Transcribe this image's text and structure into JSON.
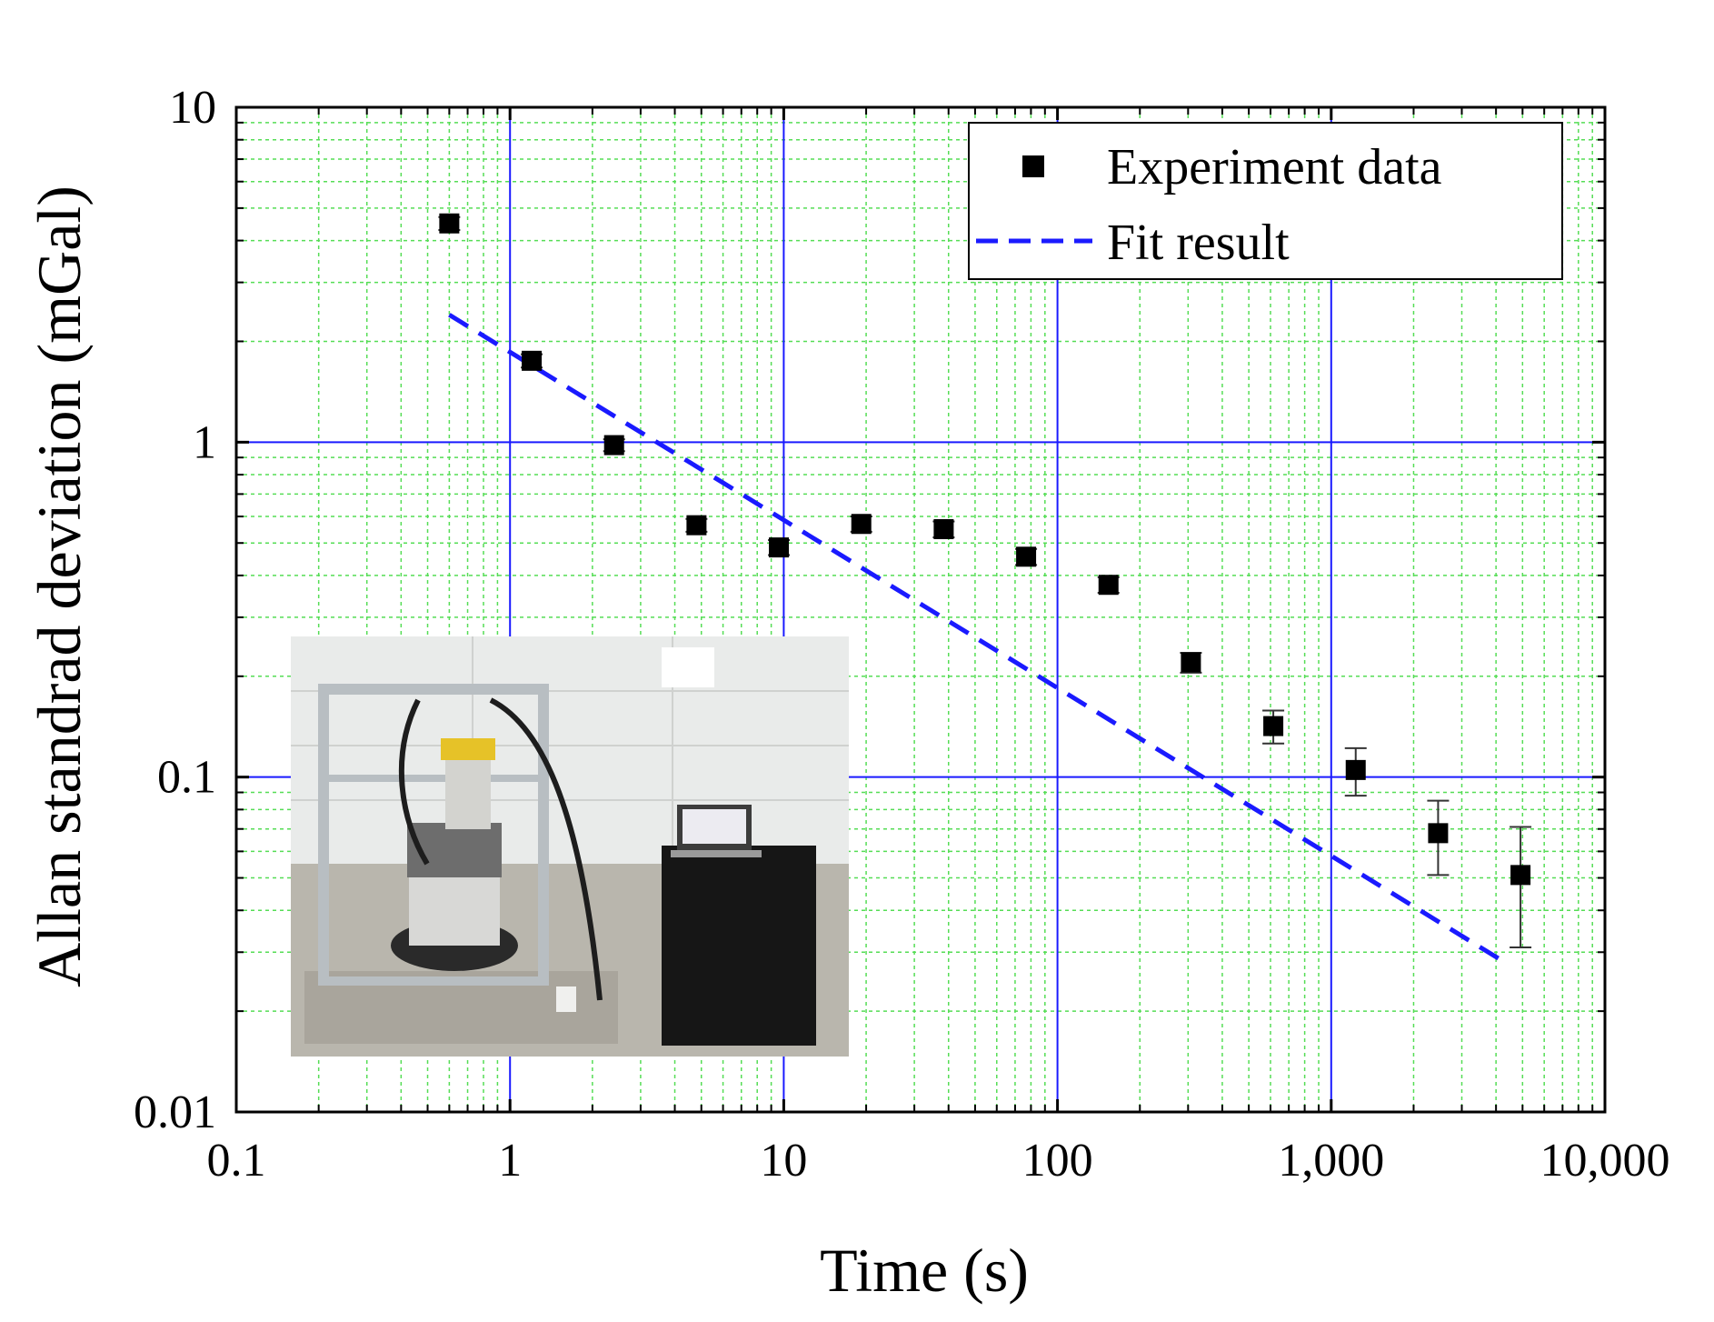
{
  "chart_data": {
    "type": "scatter",
    "title": "",
    "xlabel": "Time (s)",
    "ylabel": "Allan standrad deviation (mGal)",
    "xscale": "log",
    "yscale": "log",
    "xlim": [
      0.1,
      10000
    ],
    "ylim": [
      0.01,
      10
    ],
    "x_ticks": [
      {
        "value": 0.1,
        "label": "0.1"
      },
      {
        "value": 1,
        "label": "1"
      },
      {
        "value": 10,
        "label": "10"
      },
      {
        "value": 100,
        "label": "100"
      },
      {
        "value": 1000,
        "label": "1,000"
      },
      {
        "value": 10000,
        "label": "10,000"
      }
    ],
    "y_ticks": [
      {
        "value": 0.01,
        "label": "0.01"
      },
      {
        "value": 0.1,
        "label": "0.1"
      },
      {
        "value": 1,
        "label": "1"
      },
      {
        "value": 10,
        "label": "10"
      }
    ],
    "grid": {
      "major": true,
      "minor": true,
      "major_color": "#1a1aff",
      "minor_color": "#55dd55"
    },
    "legend": {
      "placement": "top-right"
    },
    "series": [
      {
        "name": "Experiment data",
        "kind": "scatter",
        "marker": "square",
        "color": "#000000",
        "points": [
          {
            "x": 0.6,
            "y": 4.5,
            "err": 0.2
          },
          {
            "x": 1.2,
            "y": 1.75,
            "err": 0.08
          },
          {
            "x": 2.4,
            "y": 0.98,
            "err": 0.04
          },
          {
            "x": 4.8,
            "y": 0.565,
            "err": 0.025
          },
          {
            "x": 9.6,
            "y": 0.485,
            "err": 0.025
          },
          {
            "x": 19.2,
            "y": 0.57,
            "err": 0.03
          },
          {
            "x": 38.4,
            "y": 0.55,
            "err": 0.03
          },
          {
            "x": 76.8,
            "y": 0.455,
            "err": 0.025
          },
          {
            "x": 153.6,
            "y": 0.375,
            "err": 0.02
          },
          {
            "x": 307.2,
            "y": 0.22,
            "err": 0.015
          },
          {
            "x": 614.4,
            "y": 0.142,
            "err": 0.016
          },
          {
            "x": 1228.8,
            "y": 0.105,
            "err": 0.017
          },
          {
            "x": 2457.6,
            "y": 0.068,
            "err": 0.017
          },
          {
            "x": 4915.2,
            "y": 0.051,
            "err": 0.02
          }
        ]
      },
      {
        "name": "Fit result",
        "kind": "line",
        "style": "dashed",
        "color": "#1a1aff",
        "x": [
          0.6,
          4300
        ],
        "y": [
          2.4,
          0.028
        ]
      }
    ]
  }
}
